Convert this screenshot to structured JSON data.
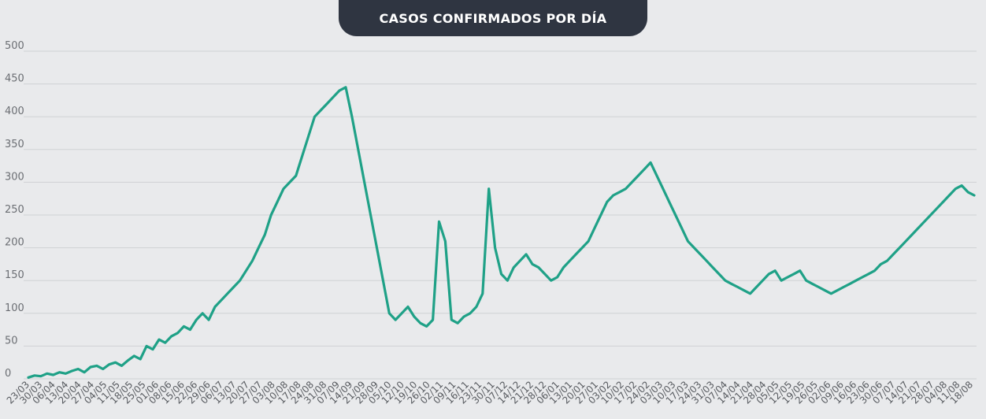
{
  "chart_data": {
    "type": "line",
    "title": "CASOS CONFIRMADOS POR DÍA",
    "xlabel": "",
    "ylabel": "",
    "ylim": [
      0,
      500
    ],
    "y_ticks": [
      0,
      50,
      100,
      150,
      200,
      250,
      300,
      350,
      400,
      450,
      500
    ],
    "grid": true,
    "legend": "none",
    "line_color": "#1fa187",
    "x_tick_labels": [
      "23/03",
      "30/03",
      "06/04",
      "13/04",
      "20/04",
      "27/04",
      "04/05",
      "11/05",
      "18/05",
      "25/05",
      "01/06",
      "08/06",
      "15/06",
      "22/06",
      "29/06",
      "06/07",
      "13/07",
      "20/07",
      "27/07",
      "03/08",
      "10/08",
      "17/08",
      "24/08",
      "31/08",
      "07/09",
      "14/09",
      "21/09",
      "28/09",
      "05/10",
      "12/10",
      "19/10",
      "26/10",
      "02/11",
      "09/11",
      "16/11",
      "23/11",
      "30/11",
      "07/12",
      "14/12",
      "21/12",
      "28/12",
      "06/01",
      "13/01",
      "20/01",
      "27/01",
      "03/02",
      "10/02",
      "17/02",
      "24/02",
      "03/03",
      "10/03",
      "17/03",
      "24/03",
      "31/03",
      "07/04",
      "14/04",
      "21/04",
      "28/04",
      "05/05",
      "12/05",
      "19/05",
      "26/05",
      "02/06",
      "09/06",
      "16/06",
      "23/06",
      "30/06",
      "07/07",
      "14/07",
      "21/07",
      "28/07",
      "04/08",
      "11/08",
      "18/08"
    ],
    "series": [
      {
        "values": [
          2,
          5,
          4,
          8,
          6,
          10,
          8,
          12,
          15,
          10,
          18,
          20,
          15,
          22,
          25,
          20,
          28,
          35,
          30,
          50,
          45,
          60,
          55,
          65,
          70,
          80,
          75,
          90,
          100,
          90,
          110,
          120,
          130,
          140,
          150,
          165,
          180,
          200,
          220,
          250,
          270,
          290,
          300,
          310,
          340,
          370,
          400,
          410,
          420,
          430,
          440,
          445,
          400,
          350,
          300,
          250,
          200,
          150,
          100,
          90,
          100,
          110,
          95,
          85,
          80,
          90,
          240,
          210,
          90,
          85,
          95,
          100,
          110,
          130,
          290,
          200,
          160,
          150,
          170,
          180,
          190,
          175,
          170,
          160,
          150,
          155,
          170,
          180,
          190,
          200,
          210,
          230,
          250,
          270,
          280,
          285,
          290,
          300,
          310,
          320,
          330,
          310,
          290,
          270,
          250,
          230,
          210,
          200,
          190,
          180,
          170,
          160,
          150,
          145,
          140,
          135,
          130,
          140,
          150,
          160,
          165,
          150,
          155,
          160,
          165,
          150,
          145,
          140,
          135,
          130,
          135,
          140,
          145,
          150,
          155,
          160,
          165,
          175,
          180,
          190,
          200,
          210,
          220,
          230,
          240,
          250,
          260,
          270,
          280,
          290,
          295,
          285,
          280
        ]
      }
    ]
  }
}
